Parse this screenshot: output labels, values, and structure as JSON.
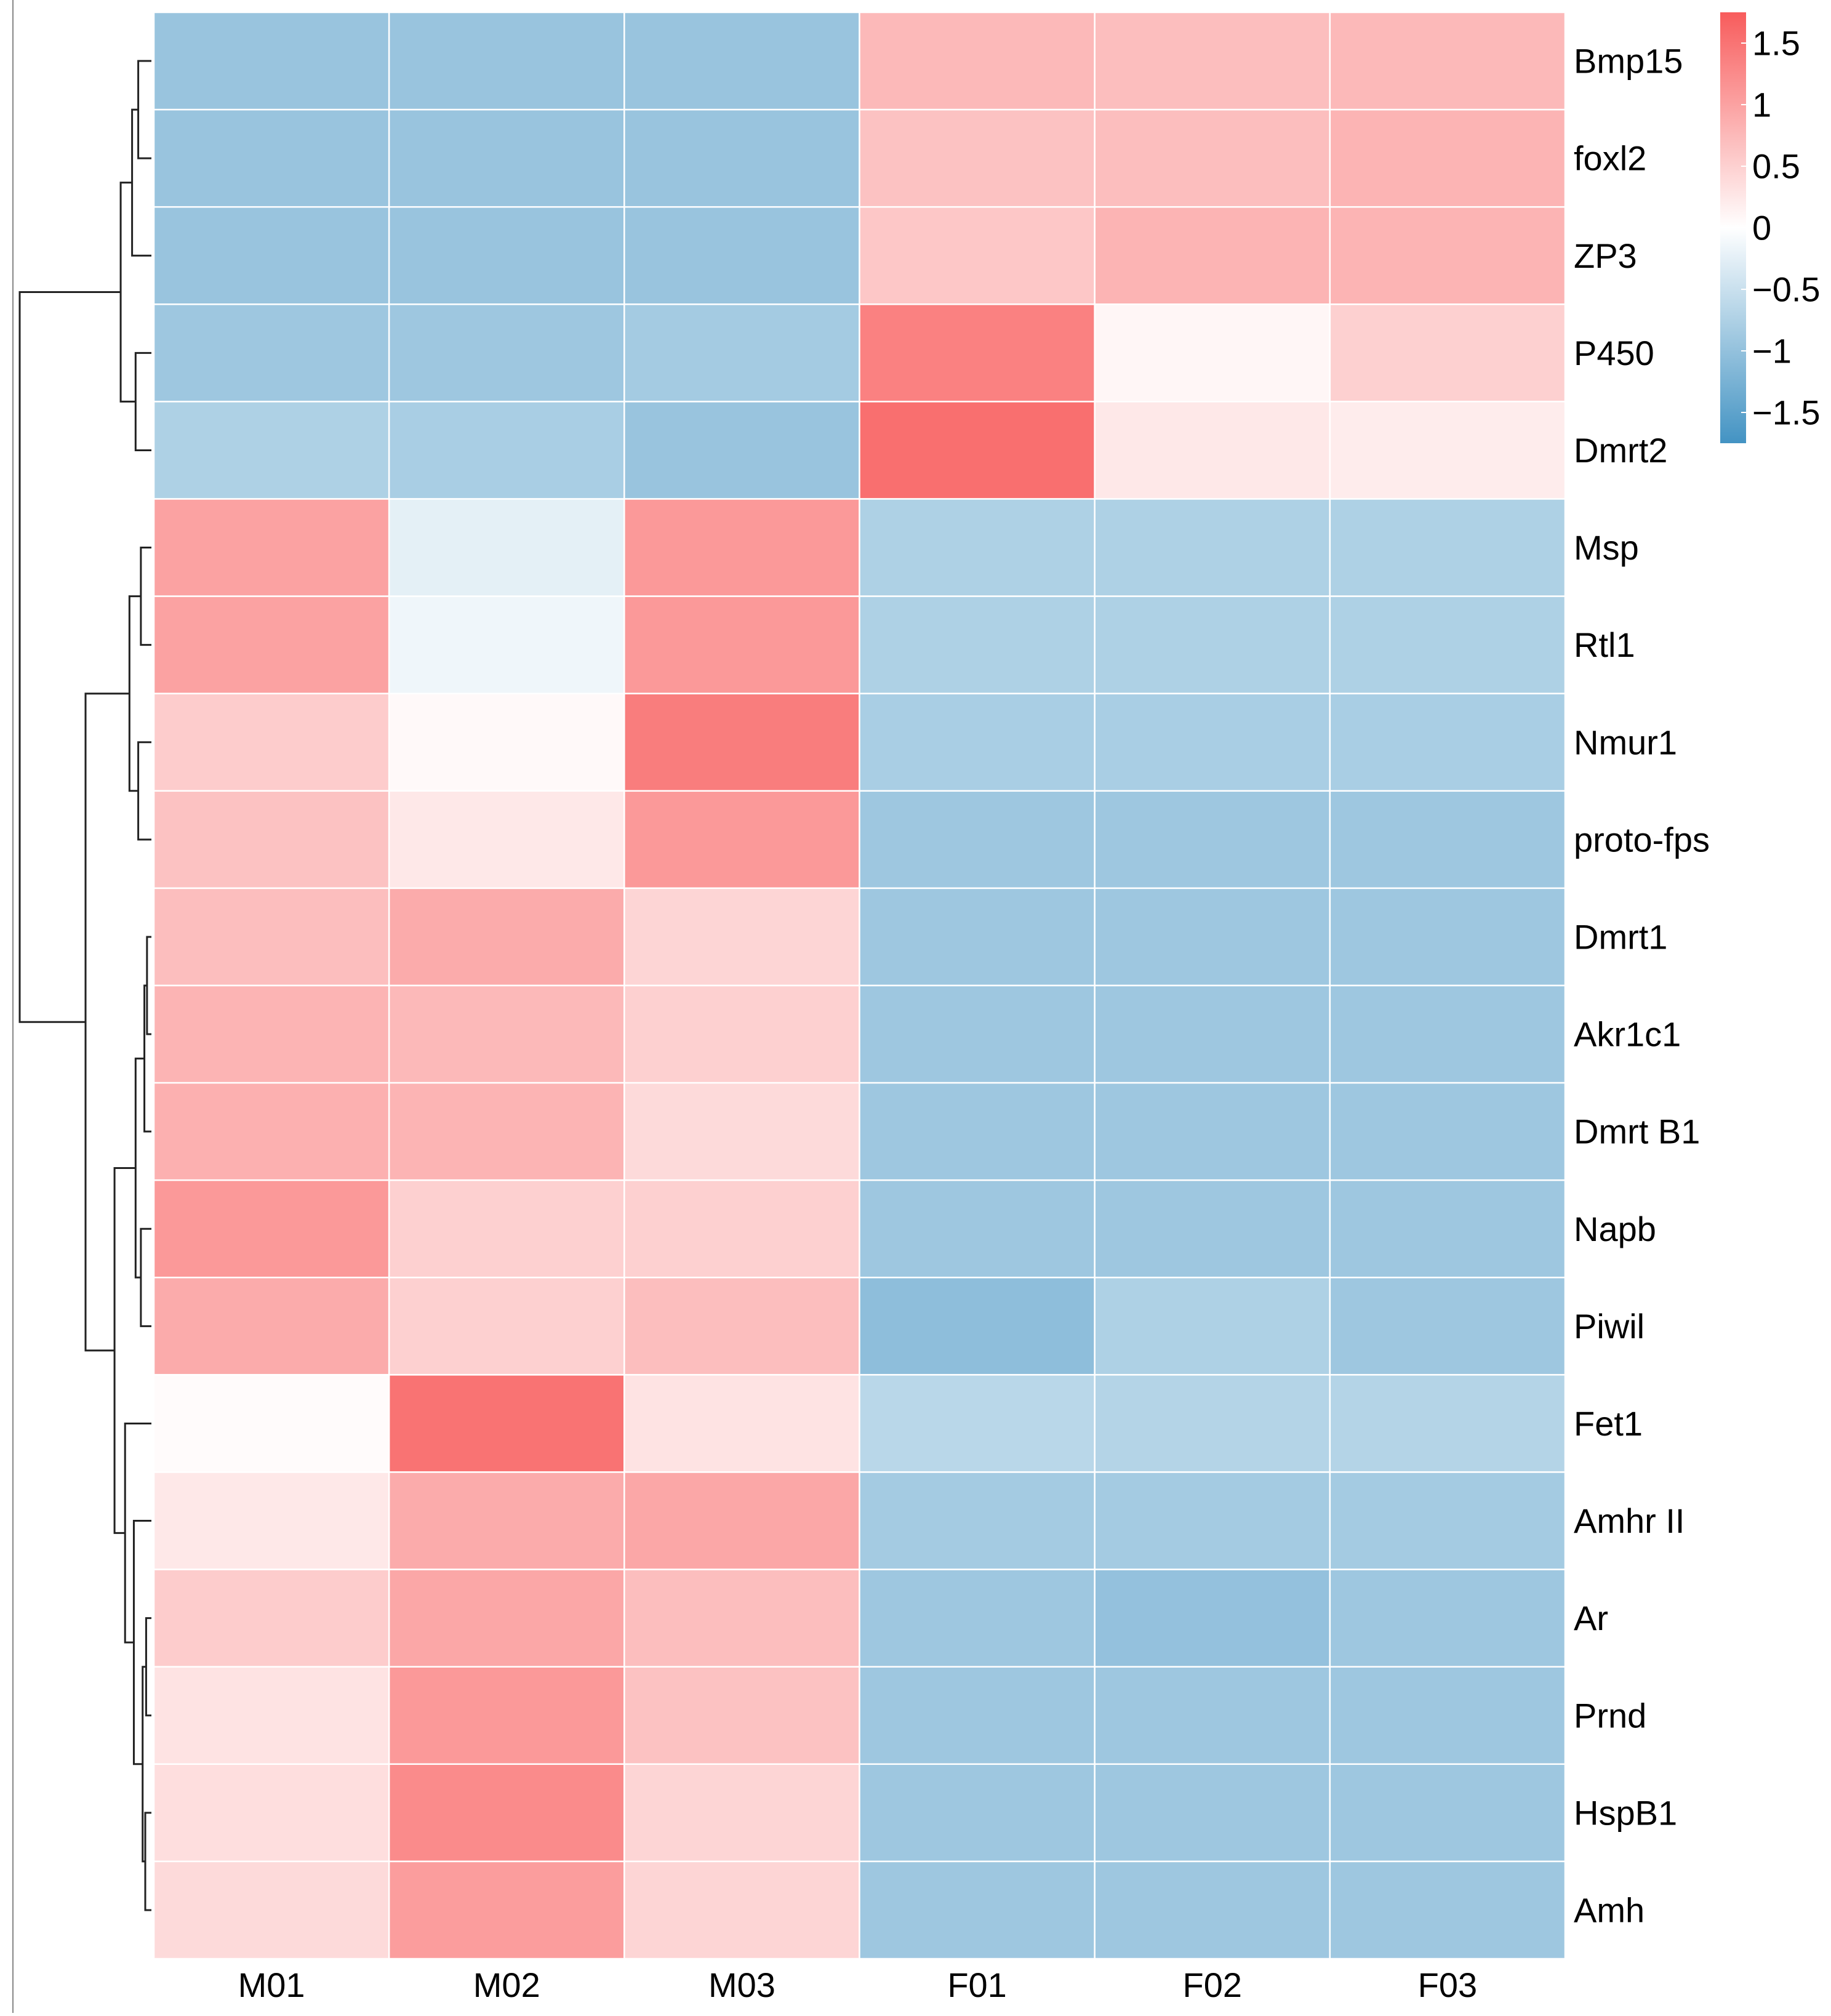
{
  "chart_data": {
    "type": "heatmap",
    "title": "",
    "columns": [
      "M01",
      "M02",
      "M03",
      "F01",
      "F02",
      "F03"
    ],
    "rows": [
      "Bmp15",
      "foxl2",
      "ZP3",
      "P450",
      "Dmrt2",
      "Msp",
      "Rtl1",
      "Nmur1",
      "proto-fps",
      "Dmrt1",
      "Akr1c1",
      "Dmrt B1",
      "Napb",
      "Piwil",
      "Fet1",
      "Amhr II",
      "Ar",
      "Prnd",
      "HspB1",
      "Amh"
    ],
    "values": [
      [
        -0.95,
        -0.95,
        -0.95,
        0.75,
        0.7,
        0.75
      ],
      [
        -0.95,
        -0.95,
        -0.95,
        0.65,
        0.7,
        0.8
      ],
      [
        -0.95,
        -0.95,
        -0.95,
        0.6,
        0.8,
        0.8
      ],
      [
        -0.9,
        -0.9,
        -0.85,
        1.35,
        0.1,
        0.5
      ],
      [
        -0.75,
        -0.8,
        -0.95,
        1.55,
        0.25,
        0.2
      ],
      [
        1.0,
        -0.25,
        1.1,
        -0.75,
        -0.75,
        -0.75
      ],
      [
        1.0,
        -0.15,
        1.1,
        -0.75,
        -0.75,
        -0.75
      ],
      [
        0.55,
        0.06,
        1.4,
        -0.8,
        -0.8,
        -0.8
      ],
      [
        0.65,
        0.25,
        1.1,
        -0.9,
        -0.9,
        -0.9
      ],
      [
        0.7,
        0.9,
        0.45,
        -0.9,
        -0.9,
        -0.9
      ],
      [
        0.8,
        0.75,
        0.5,
        -0.9,
        -0.9,
        -0.9
      ],
      [
        0.85,
        0.8,
        0.4,
        -0.9,
        -0.9,
        -0.9
      ],
      [
        1.1,
        0.5,
        0.5,
        -0.9,
        -0.9,
        -0.9
      ],
      [
        0.9,
        0.5,
        0.7,
        -1.05,
        -0.75,
        -0.9
      ],
      [
        0.04,
        1.5,
        0.3,
        -0.65,
        -0.7,
        -0.7
      ],
      [
        0.25,
        0.9,
        0.95,
        -0.85,
        -0.85,
        -0.85
      ],
      [
        0.55,
        0.95,
        0.7,
        -0.9,
        -1.0,
        -0.9
      ],
      [
        0.3,
        1.1,
        0.65,
        -0.9,
        -0.9,
        -0.9
      ],
      [
        0.35,
        1.25,
        0.45,
        -0.9,
        -0.9,
        -0.9
      ],
      [
        0.4,
        1.05,
        0.45,
        -0.9,
        -0.9,
        -0.9
      ]
    ],
    "color_scale": {
      "min": -1.75,
      "max": 1.75,
      "low_color": "#4393c3",
      "mid_color": "#ffffff",
      "high_color": "#f85c5c"
    },
    "legend": {
      "position": "top-right",
      "ticks": [
        1.5,
        1,
        0.5,
        0,
        -0.5,
        -1,
        -1.5
      ],
      "tick_labels": [
        "1.5",
        "1",
        "0.5",
        "0",
        "−0.5",
        "−1",
        "−1.5"
      ]
    },
    "dendrogram": {
      "side": "left",
      "merges": [
        [
          -1,
          -2,
          0.15
        ],
        [
          -4,
          -5,
          0.18
        ],
        [
          -3,
          1,
          0.22
        ],
        [
          3,
          2,
          0.35
        ],
        [
          -6,
          -7,
          0.12
        ],
        [
          -8,
          -9,
          0.15
        ],
        [
          5,
          6,
          0.25
        ],
        [
          -10,
          -11,
          0.05
        ],
        [
          -12,
          8,
          0.08
        ],
        [
          -13,
          -14,
          0.12
        ],
        [
          9,
          10,
          0.18
        ],
        [
          -17,
          -18,
          0.06
        ],
        [
          -19,
          -20,
          0.07
        ],
        [
          12,
          13,
          0.1
        ],
        [
          -16,
          14,
          0.2
        ],
        [
          -15,
          15,
          0.3
        ],
        [
          11,
          16,
          0.42
        ],
        [
          7,
          17,
          0.75
        ],
        [
          4,
          18,
          1.5
        ]
      ]
    }
  }
}
